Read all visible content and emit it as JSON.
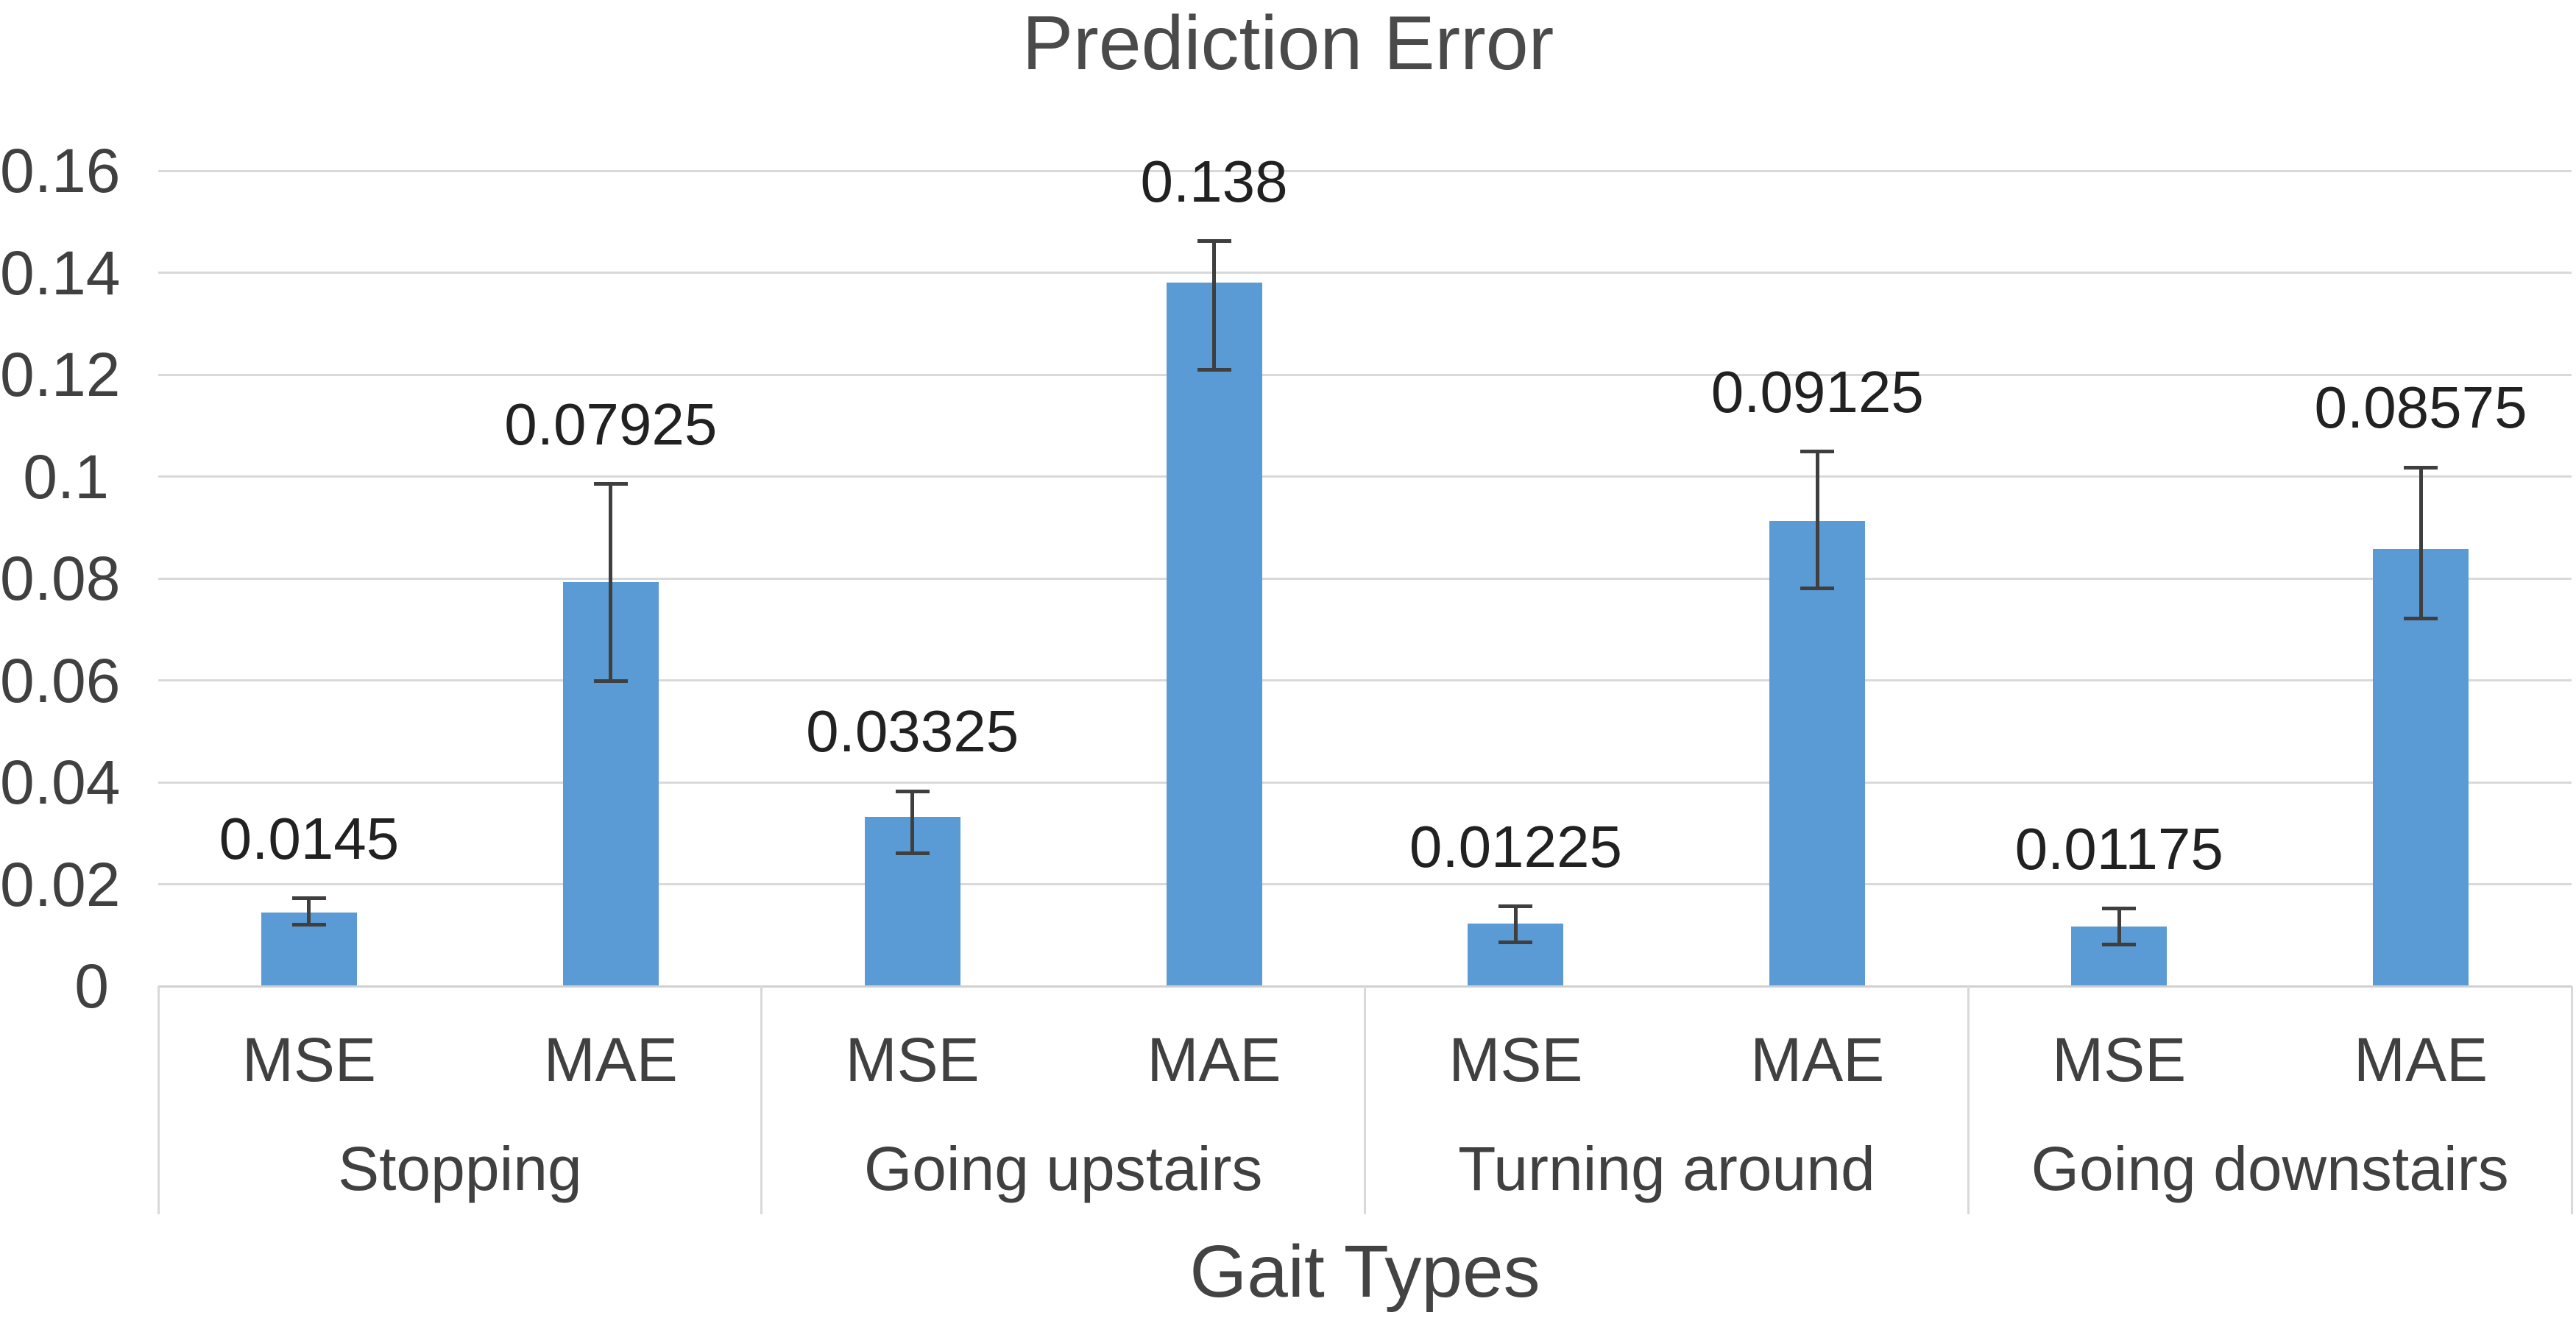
{
  "chart_data": {
    "type": "bar",
    "title": "Prediction Error",
    "xlabel": "Gait Types",
    "ylabel": "",
    "ylim": [
      0,
      0.16
    ],
    "ytick_step": 0.02,
    "yticks": [
      "0",
      "0.02",
      "0.04",
      "0.06",
      "0.08",
      "0.1",
      "0.12",
      "0.14",
      "0.16"
    ],
    "grid": true,
    "legend": "none",
    "bar_color": "#5b9bd5",
    "error_bar_color": "#3f3f3f",
    "gridline_color": "#d9d9d9",
    "text_color": "#404040",
    "groups": [
      {
        "label": "Stopping",
        "bars": [
          {
            "metric": "MSE",
            "value": 0.0145,
            "label": "0.0145",
            "error_low": 0.012,
            "error_high": 0.0172
          },
          {
            "metric": "MAE",
            "value": 0.07925,
            "label": "0.07925",
            "error_low": 0.0598,
            "error_high": 0.0985
          }
        ]
      },
      {
        "label": "Going upstairs",
        "bars": [
          {
            "metric": "MSE",
            "value": 0.03325,
            "label": "0.03325",
            "error_low": 0.026,
            "error_high": 0.0382
          },
          {
            "metric": "MAE",
            "value": 0.138,
            "label": "0.138",
            "error_low": 0.121,
            "error_high": 0.1462
          }
        ]
      },
      {
        "label": "Turning around",
        "bars": [
          {
            "metric": "MSE",
            "value": 0.01225,
            "label": "0.01225",
            "error_low": 0.0086,
            "error_high": 0.0156
          },
          {
            "metric": "MAE",
            "value": 0.09125,
            "label": "0.09125",
            "error_low": 0.078,
            "error_high": 0.1049
          }
        ]
      },
      {
        "label": "Going downstairs",
        "bars": [
          {
            "metric": "MSE",
            "value": 0.01175,
            "label": "0.01175",
            "error_low": 0.0082,
            "error_high": 0.0152
          },
          {
            "metric": "MAE",
            "value": 0.08575,
            "label": "0.08575",
            "error_low": 0.0722,
            "error_high": 0.1018
          }
        ]
      }
    ]
  }
}
